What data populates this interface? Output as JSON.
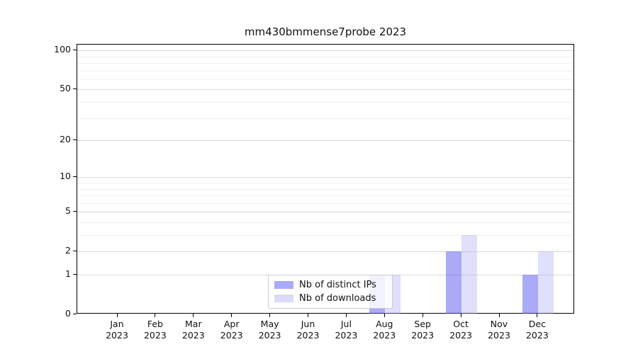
{
  "chart_data": {
    "type": "bar",
    "title": "mm430bmmense7probe 2023",
    "scale": "log1p",
    "grid": true,
    "legend_position": "inside lower-center-left",
    "categories": [
      "Jan",
      "Feb",
      "Mar",
      "Apr",
      "May",
      "Jun",
      "Jul",
      "Aug",
      "Sep",
      "Oct",
      "Nov",
      "Dec"
    ],
    "year_label": "2023",
    "series": [
      {
        "name": "Nb of distinct IPs",
        "color": "#5555F080",
        "solid_color": "#aaaafa",
        "values": [
          0,
          0,
          0,
          0,
          0,
          0,
          0,
          1,
          0,
          2,
          0,
          1
        ]
      },
      {
        "name": "Nb of downloads",
        "color": "#A5A5F559",
        "solid_color": "#dadafa",
        "values": [
          0,
          0,
          0,
          0,
          0,
          0,
          0,
          1,
          0,
          3,
          0,
          2
        ]
      }
    ],
    "y_major_ticks": [
      0,
      1,
      2,
      5,
      10,
      20,
      50,
      100
    ],
    "y_minor_gridlines": [
      3,
      4,
      6,
      7,
      8,
      9,
      30,
      40,
      60,
      70,
      80,
      90
    ],
    "ylim": [
      0,
      111
    ],
    "major_grid_color": "#d9d9d9",
    "minor_grid_color": "#f0f0f0"
  }
}
